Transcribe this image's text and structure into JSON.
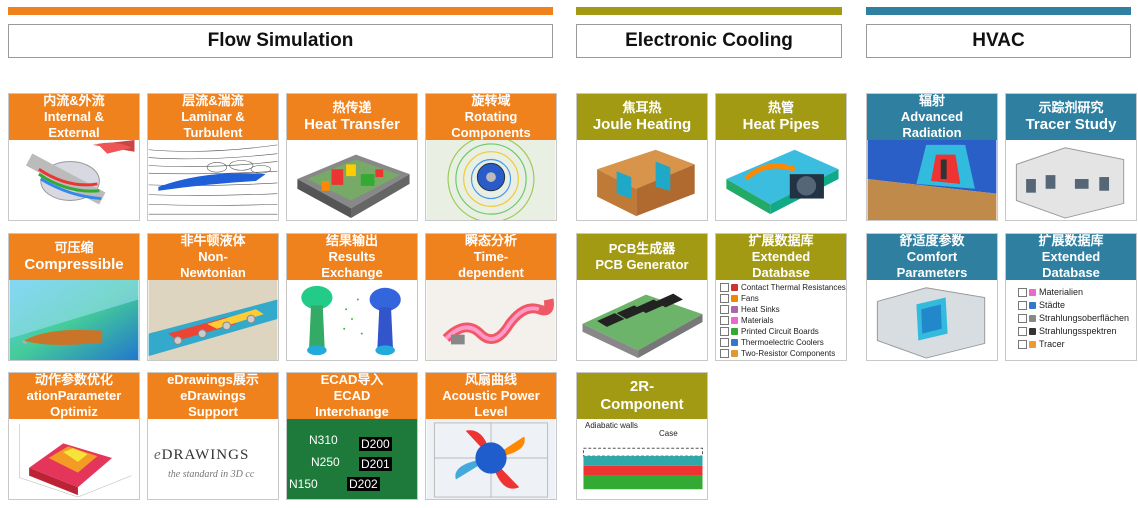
{
  "sections": {
    "flow": {
      "title": "Flow Simulation",
      "color": "#f0821e"
    },
    "electronic": {
      "title": "Electronic Cooling",
      "color": "#a39a14"
    },
    "hvac": {
      "title": "HVAC",
      "color": "#2e7fa0"
    }
  },
  "tiles": {
    "f1": {
      "zh": "内流&外流",
      "en1": "Internal &",
      "en2": "External"
    },
    "f2": {
      "zh": "层流&湍流",
      "en1": "Laminar &",
      "en2": "Turbulent"
    },
    "f3": {
      "zh": "热传递",
      "en1": "Heat Transfer",
      "en2": ""
    },
    "f4": {
      "zh": "旋转域",
      "en1": "Rotating",
      "en2": "Components"
    },
    "f5": {
      "zh": "可压缩",
      "en1": "Compressible",
      "en2": ""
    },
    "f6": {
      "zh": "非牛顿液体",
      "en1": "Non-",
      "en2": "Newtonian"
    },
    "f7": {
      "zh": "结果输出",
      "en1": "Results",
      "en2": "Exchange"
    },
    "f8": {
      "zh": "瞬态分析",
      "en1": "Time-",
      "en2": "dependent"
    },
    "f9": {
      "zh": "动作参数优化",
      "en1": "ationParameter",
      "en2": "Optimiz"
    },
    "f10": {
      "zh": "eDrawings展示",
      "en1": "eDrawings",
      "en2": "Support"
    },
    "f11": {
      "zh": "ECAD导入",
      "en1": "ECAD",
      "en2": "Interchange"
    },
    "f12": {
      "zh": "风扇曲线",
      "en1": "Acoustic Power",
      "en2": "Level"
    },
    "e1": {
      "zh": "焦耳热",
      "en1": "Joule Heating",
      "en2": ""
    },
    "e2": {
      "zh": "热管",
      "en1": "Heat Pipes",
      "en2": ""
    },
    "e3": {
      "zh": "PCB生成器",
      "en1": "PCB Generator",
      "en2": ""
    },
    "e4": {
      "zh": "扩展数据库",
      "en1": "Extended",
      "en2": "Database"
    },
    "e5": {
      "zh": "2R-",
      "en1": "Component",
      "en2": ""
    },
    "h1": {
      "zh": "辐射",
      "en1": "Advanced",
      "en2": "Radiation"
    },
    "h2": {
      "zh": "示踪剂研究",
      "en1": "Tracer Study",
      "en2": ""
    },
    "h3": {
      "zh": "舒适度参数",
      "en1": "Comfort",
      "en2": "Parameters"
    },
    "h4": {
      "zh": "扩展数据库",
      "en1": "Extended",
      "en2": "Database"
    }
  },
  "e4_list": [
    "Contact Thermal Resistances",
    "Fans",
    "Heat Sinks",
    "Materials",
    "Printed Circuit Boards",
    "Thermoelectric Coolers",
    "Two-Resistor Components"
  ],
  "h4_list": [
    "Materialien",
    "Städte",
    "Strahlungsoberflächen",
    "Strahlungsspektren",
    "Tracer"
  ],
  "edrawings_logo": {
    "name": "DRAWINGS",
    "tagline": "the standard in 3D cc"
  },
  "ecad_labels": [
    "N310",
    "D200",
    "N250",
    "D201",
    "N150",
    "D202"
  ],
  "twor_labels": {
    "walls": "Adiabatic walls",
    "case": "Case"
  }
}
